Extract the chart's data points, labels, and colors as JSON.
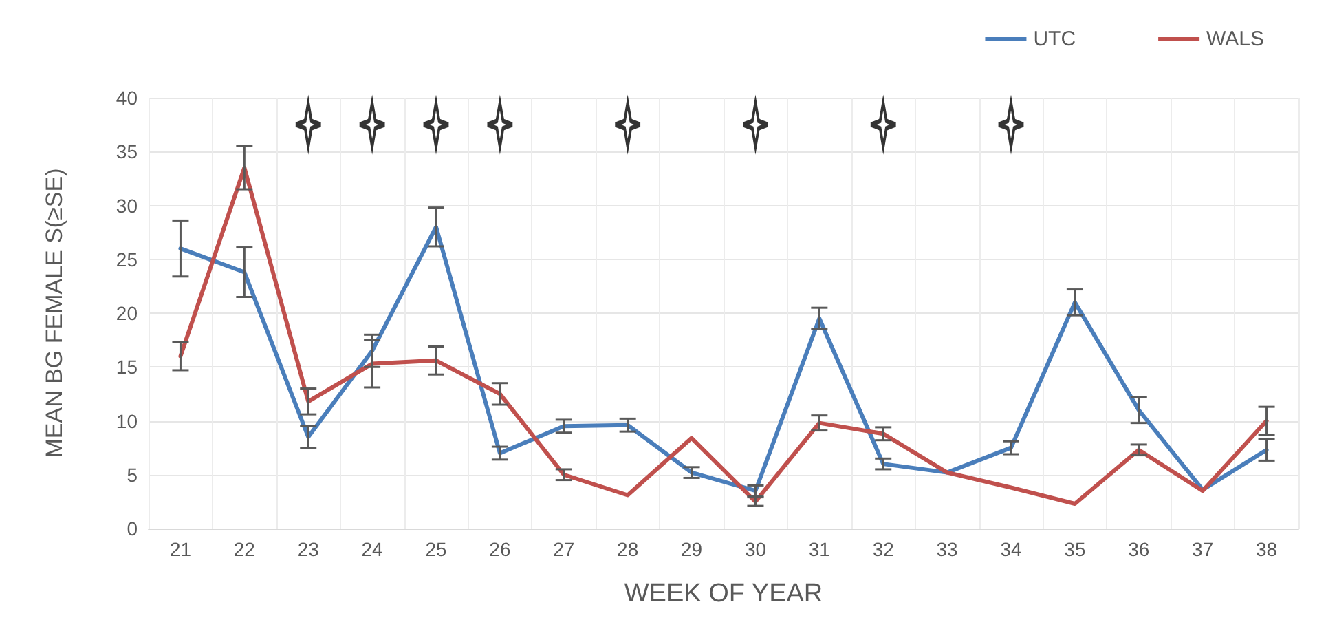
{
  "chart_data": {
    "type": "line",
    "xlabel": "WEEK OF YEAR",
    "ylabel": "MEAN BG FEMALE S(≥SE)",
    "categories": [
      "21",
      "22",
      "23",
      "24",
      "25",
      "26",
      "27",
      "28",
      "29",
      "30",
      "31",
      "32",
      "33",
      "34",
      "35",
      "36",
      "37",
      "38"
    ],
    "series": [
      {
        "name": "UTC",
        "color": "#4a7ebb",
        "values": [
          26,
          23.8,
          8.5,
          16.5,
          28,
          7,
          9.5,
          9.6,
          5.2,
          3.5,
          19.5,
          6,
          5.2,
          7.5,
          21,
          11,
          3.6,
          7.3
        ],
        "errors": [
          2.6,
          2.3,
          1,
          1.5,
          1.8,
          0.6,
          0.6,
          0.6,
          0.5,
          0.5,
          1,
          0.5,
          null,
          0.6,
          1.2,
          1.2,
          null,
          1
        ]
      },
      {
        "name": "WALS",
        "color": "#c0504d",
        "values": [
          16,
          33.5,
          11.8,
          15.3,
          15.6,
          12.5,
          5,
          3.1,
          8.4,
          2.5,
          9.8,
          8.8,
          5.2,
          3.8,
          2.3,
          7.3,
          3.5,
          10
        ],
        "errors": [
          1.3,
          2,
          1.2,
          2.2,
          1.3,
          1,
          0.5,
          null,
          null,
          0.4,
          0.7,
          0.6,
          null,
          null,
          null,
          0.5,
          null,
          1.3
        ]
      },
      {
        "type": "scatter",
        "marker": "star",
        "color": "#000000",
        "values": [
          null,
          null,
          37.5,
          37.5,
          37.5,
          37.5,
          null,
          37.5,
          null,
          37.5,
          null,
          37.5,
          null,
          37.5,
          null,
          null,
          null,
          null
        ]
      }
    ],
    "ylim": [
      0,
      40
    ],
    "yticks": [
      0,
      5,
      10,
      15,
      20,
      25,
      30,
      35,
      40
    ],
    "grid": true,
    "legend": "top right",
    "marker": "none",
    "line_style": "solid"
  }
}
